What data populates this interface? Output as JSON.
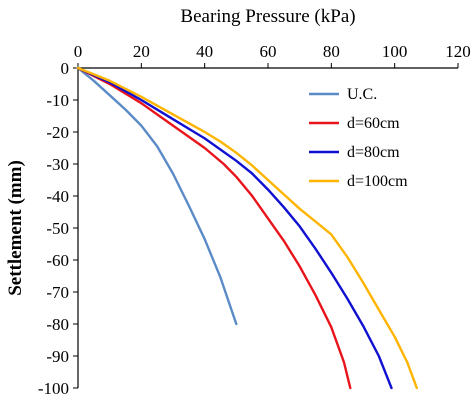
{
  "chart_data": {
    "type": "line",
    "xlabel": "Bearing Pressure (kPa)",
    "ylabel": "Settlement (mm)",
    "xlim": [
      0,
      120
    ],
    "ylim": [
      -100,
      0
    ],
    "x_axis_position": "top",
    "x_ticks": [
      "0",
      "20",
      "40",
      "60",
      "80",
      "100",
      "120"
    ],
    "y_ticks": [
      "0",
      "-10",
      "-20",
      "-30",
      "-40",
      "-50",
      "-60",
      "-70",
      "-80",
      "-90",
      "-100"
    ],
    "grid": false,
    "legend_position": "right",
    "series": [
      {
        "name": "U.C.",
        "color": "#5B8BC7",
        "points": [
          [
            0,
            0
          ],
          [
            5,
            -4
          ],
          [
            10,
            -8.5
          ],
          [
            15,
            -13
          ],
          [
            20,
            -18
          ],
          [
            25,
            -24.5
          ],
          [
            30,
            -33
          ],
          [
            35,
            -43
          ],
          [
            40,
            -53.5
          ],
          [
            45,
            -65.5
          ],
          [
            50,
            -80
          ]
        ]
      },
      {
        "name": "d=60cm",
        "color": "#E8141B",
        "points": [
          [
            0,
            0
          ],
          [
            10,
            -5
          ],
          [
            20,
            -11
          ],
          [
            30,
            -18
          ],
          [
            40,
            -25
          ],
          [
            46,
            -30
          ],
          [
            50,
            -34
          ],
          [
            55,
            -40
          ],
          [
            60,
            -47
          ],
          [
            65,
            -54
          ],
          [
            70,
            -62
          ],
          [
            75,
            -71
          ],
          [
            80,
            -81
          ],
          [
            84,
            -92
          ],
          [
            86,
            -100
          ]
        ]
      },
      {
        "name": "d=80cm",
        "color": "#1010D0",
        "points": [
          [
            0,
            0
          ],
          [
            10,
            -4.5
          ],
          [
            20,
            -10
          ],
          [
            30,
            -16
          ],
          [
            40,
            -22
          ],
          [
            50,
            -29
          ],
          [
            55,
            -33
          ],
          [
            60,
            -38
          ],
          [
            65,
            -43.5
          ],
          [
            70,
            -49.5
          ],
          [
            75,
            -56.5
          ],
          [
            80,
            -64
          ],
          [
            85,
            -72
          ],
          [
            90,
            -80.5
          ],
          [
            95,
            -90
          ],
          [
            99,
            -100
          ]
        ]
      },
      {
        "name": "d=100cm",
        "color": "#FFB400",
        "points": [
          [
            0,
            0
          ],
          [
            10,
            -4
          ],
          [
            20,
            -9
          ],
          [
            30,
            -14.5
          ],
          [
            40,
            -20
          ],
          [
            45,
            -23
          ],
          [
            50,
            -26.5
          ],
          [
            55,
            -30.5
          ],
          [
            60,
            -35
          ],
          [
            65,
            -39.5
          ],
          [
            70,
            -44
          ],
          [
            75,
            -48
          ],
          [
            80,
            -52
          ],
          [
            85,
            -59
          ],
          [
            90,
            -67
          ],
          [
            95,
            -75.5
          ],
          [
            100,
            -84
          ],
          [
            104,
            -92
          ],
          [
            107,
            -100
          ]
        ]
      }
    ]
  }
}
